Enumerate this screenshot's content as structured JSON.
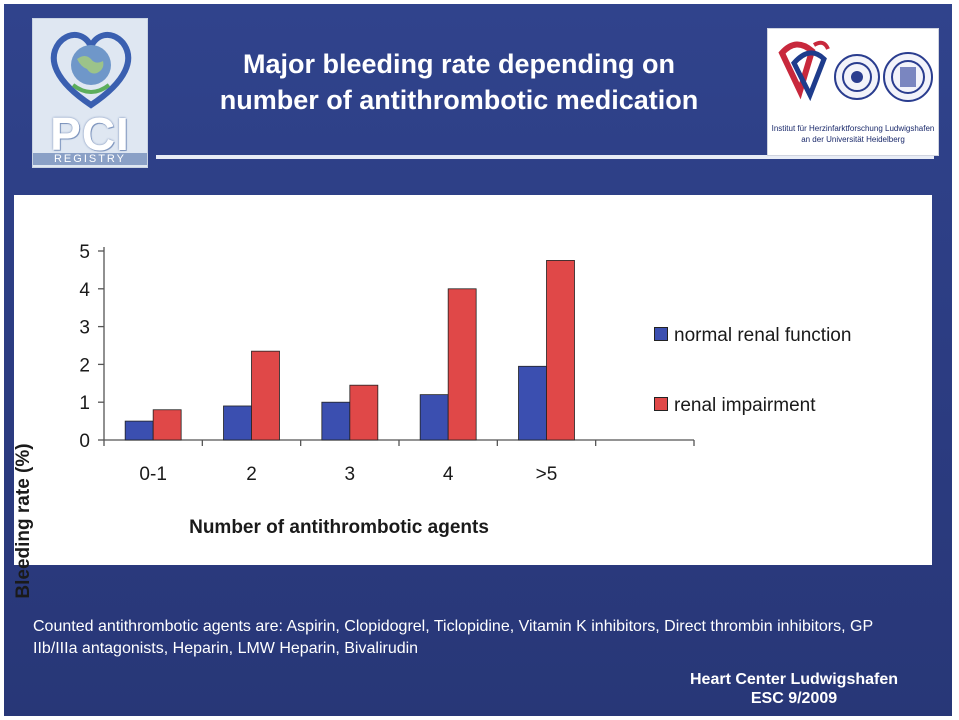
{
  "header": {
    "title_line1": "Major bleeding rate depending on",
    "title_line2": "number of antithrombotic medication"
  },
  "logo_left": {
    "main_text": "PCI",
    "sub_text": "REGISTRY"
  },
  "logo_right": {
    "caption_line1": "Institut für Herzinfarktforschung Ludwigshafen",
    "caption_line2": "an der Universität Heidelberg"
  },
  "chart_data": {
    "type": "bar",
    "title": "",
    "xlabel": "Number of antithrombotic agents",
    "ylabel": "Bleeding rate (%)",
    "ylim": [
      0,
      5
    ],
    "yticks": [
      "0",
      "1",
      "2",
      "3",
      "4",
      "5"
    ],
    "categories": [
      "0-1",
      "2",
      "3",
      "4",
      ">5"
    ],
    "series": [
      {
        "name": "normal renal function",
        "color": "#3b4fb0",
        "values": [
          0.5,
          0.9,
          1.0,
          1.2,
          1.95
        ]
      },
      {
        "name": "renal impairment",
        "color": "#e04848",
        "values": [
          0.8,
          2.35,
          1.45,
          4.0,
          4.75
        ]
      }
    ],
    "legend_position": "right",
    "grid": false
  },
  "footnote": "Counted antithrombotic agents are: Aspirin, Clopidogrel, Ticlopidine, Vitamin K inhibitors, Direct thrombin inhibitors, GP IIb/IIIa antagonists, Heparin, LMW Heparin, Bivalirudin",
  "credit": {
    "line1": "Heart Center Ludwigshafen",
    "line2": "ESC 9/2009"
  },
  "colors": {
    "background": "#2f3f85",
    "panel": "#ffffff"
  }
}
